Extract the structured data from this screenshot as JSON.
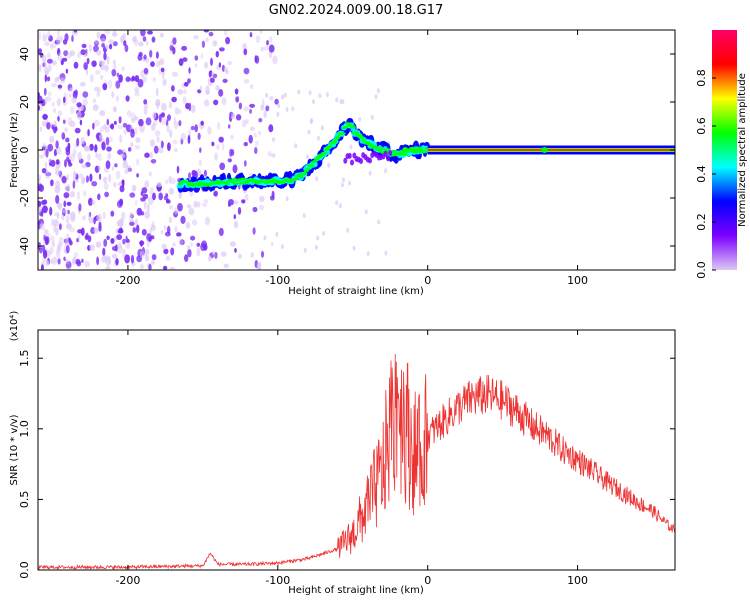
{
  "title": "GN02.2024.009.00.18.G17",
  "colors": {
    "snr_line": "#ee3333",
    "frame": "#000000",
    "scatter_noise": "#7a2df2",
    "colorbar_stops": [
      "#dcc8f5",
      "#7b00ff",
      "#0000ff",
      "#00ffff",
      "#00ff00",
      "#ffff00",
      "#ff0000",
      "#ff0066"
    ]
  },
  "chart_data": [
    {
      "type": "heatmap",
      "xlabel": "Height of straight line (km)",
      "ylabel": "Frequency (Hz)",
      "xlim": [
        -260,
        165
      ],
      "ylim": [
        -50,
        50
      ],
      "x_ticks": [
        -200,
        -100,
        0,
        100
      ],
      "y_ticks": [
        -40,
        -20,
        0,
        20,
        40
      ],
      "noise_region_x": [
        -260,
        -110
      ],
      "ridge": {
        "x": [
          -165,
          -150,
          -130,
          -110,
          -95,
          -85,
          -75,
          -65,
          -58,
          -52,
          -47,
          -40,
          -30,
          -20,
          -10,
          0,
          50,
          100,
          165
        ],
        "frequency": [
          -14,
          -14,
          -13,
          -13,
          -13,
          -11,
          -5,
          1,
          7,
          11,
          6,
          3,
          0,
          -2,
          0,
          0,
          0,
          0,
          0
        ]
      },
      "colorbar": {
        "label": "Normalized spectral amplitude",
        "range": [
          0.0,
          1.0
        ],
        "ticks": [
          0.0,
          0.2,
          0.4,
          0.6,
          0.8
        ]
      }
    },
    {
      "type": "line",
      "xlabel": "Height of straight line (km)",
      "ylabel": "SNR (10 * v/v)",
      "y_scale_label": "(x10⁴)",
      "xlim": [
        -260,
        165
      ],
      "ylim": [
        0,
        1.7
      ],
      "x_ticks": [
        -200,
        -100,
        0,
        100
      ],
      "y_ticks": [
        0.0,
        0.5,
        1.0,
        1.5
      ],
      "series": [
        {
          "x": [
            -260,
            -200,
            -150,
            -145,
            -140,
            -120,
            -100,
            -80,
            -60,
            -50,
            -40,
            -30,
            -25,
            -20,
            -15,
            -10,
            -5,
            0,
            10,
            20,
            30,
            40,
            50,
            60,
            70,
            80,
            90,
            100,
            110,
            120,
            130,
            140,
            150,
            160,
            165
          ],
          "values": [
            0.02,
            0.02,
            0.03,
            0.12,
            0.04,
            0.04,
            0.05,
            0.08,
            0.15,
            0.25,
            0.45,
            0.7,
            1.0,
            1.25,
            1.05,
            0.85,
            0.8,
            0.95,
            1.05,
            1.15,
            1.22,
            1.24,
            1.2,
            1.12,
            1.02,
            0.95,
            0.85,
            0.78,
            0.7,
            0.62,
            0.55,
            0.48,
            0.42,
            0.32,
            0.28
          ]
        }
      ]
    }
  ]
}
